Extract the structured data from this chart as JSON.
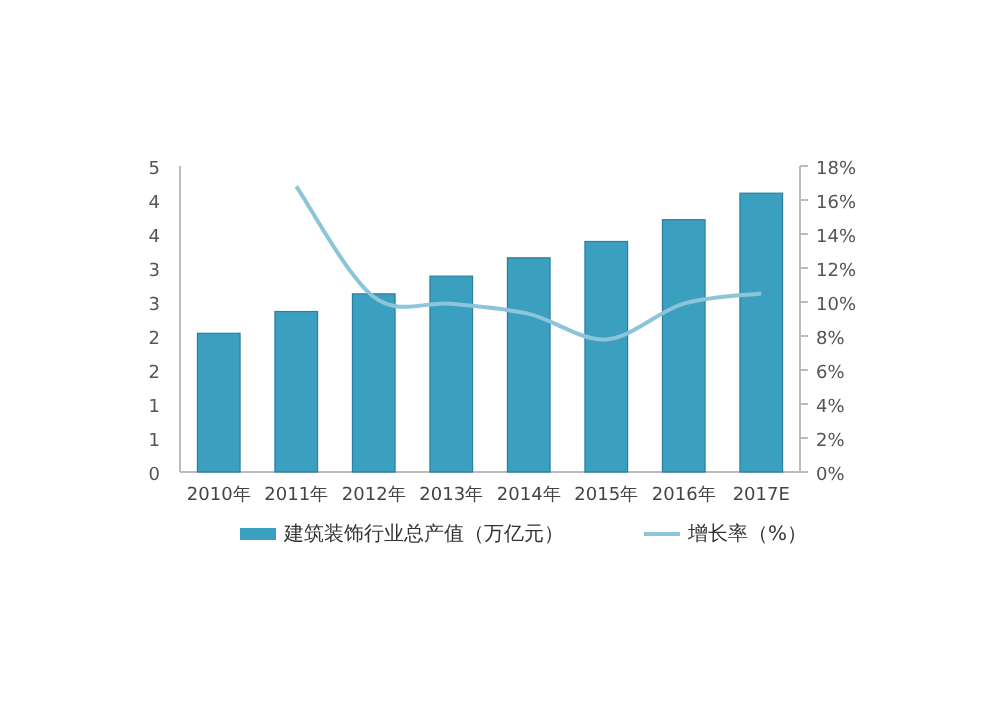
{
  "chart_data": {
    "type": "bar",
    "categories": [
      "2010年",
      "2011年",
      "2012年",
      "2013年",
      "2014年",
      "2015年",
      "2016年",
      "2017E"
    ],
    "series": [
      {
        "name": "建筑装饰行业总产值（万亿元）",
        "color": "#3b9fbf",
        "values": [
          2.04,
          2.36,
          2.62,
          2.88,
          3.15,
          3.39,
          3.71,
          4.1
        ]
      },
      {
        "name": "增长率（%）",
        "type": "line",
        "axis": "y2",
        "color": "#8cc4da",
        "values": [
          null,
          16.8,
          10.3,
          9.9,
          9.3,
          7.8,
          9.9,
          10.5
        ]
      }
    ],
    "ylim": [
      0,
      4.5
    ],
    "yticks": [
      0,
      {
        "value": 0.5,
        "label": "1"
      },
      1,
      {
        "value": 1.5,
        "label": "2"
      },
      2,
      {
        "value": 2.5,
        "label": "3"
      },
      3,
      {
        "value": 3.5,
        "label": "4"
      },
      4,
      {
        "value": 4.5,
        "label": "5"
      }
    ],
    "y2lim": [
      0,
      18
    ],
    "y2ticks": [
      {
        "value": 0,
        "label": "0%"
      },
      {
        "value": 2,
        "label": "2%"
      },
      {
        "value": 4,
        "label": "4%"
      },
      {
        "value": 6,
        "label": "6%"
      },
      {
        "value": 8,
        "label": "8%"
      },
      {
        "value": 10,
        "label": "10%"
      },
      {
        "value": 12,
        "label": "12%"
      },
      {
        "value": 14,
        "label": "14%"
      },
      {
        "value": 16,
        "label": "16%"
      },
      {
        "value": 18,
        "label": "18%"
      }
    ],
    "grid": false,
    "legend": "bottom",
    "marker": "none",
    "line_style": "solid"
  }
}
